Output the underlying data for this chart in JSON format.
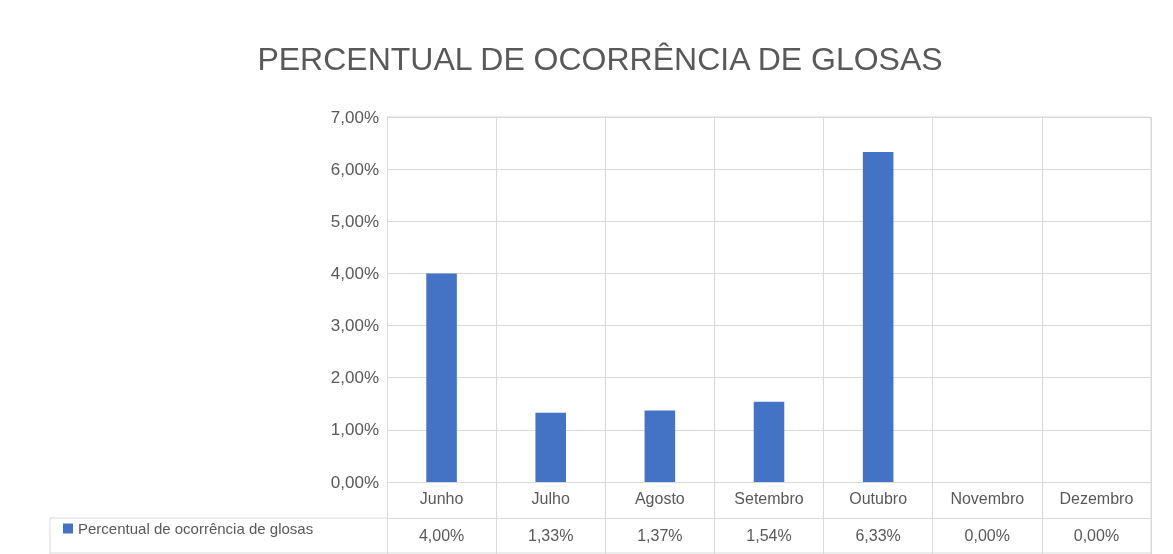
{
  "chart_data": {
    "type": "bar",
    "title": "PERCENTUAL DE OCORRÊNCIA DE GLOSAS",
    "categories": [
      "Junho",
      "Julho",
      "Agosto",
      "Setembro",
      "Outubro",
      "Novembro",
      "Dezembro"
    ],
    "series": [
      {
        "name": "Percentual de ocorrência de glosas",
        "color": "#4472c4",
        "values": [
          4.0,
          1.33,
          1.37,
          1.54,
          6.33,
          0.0,
          0.0
        ],
        "value_labels": [
          "4,00%",
          "1,33%",
          "1,37%",
          "1,54%",
          "6,33%",
          "0,00%",
          "0,00%"
        ]
      }
    ],
    "ylim": [
      0,
      7
    ],
    "yticks": [
      {
        "value": 0,
        "label": "0,00%"
      },
      {
        "value": 1,
        "label": "1,00%"
      },
      {
        "value": 2,
        "label": "2,00%"
      },
      {
        "value": 3,
        "label": "3,00%"
      },
      {
        "value": 4,
        "label": "4,00%"
      },
      {
        "value": 5,
        "label": "5,00%"
      },
      {
        "value": 6,
        "label": "6,00%"
      },
      {
        "value": 7,
        "label": "7,00%"
      }
    ],
    "grid": true,
    "legend": "bottom left"
  }
}
